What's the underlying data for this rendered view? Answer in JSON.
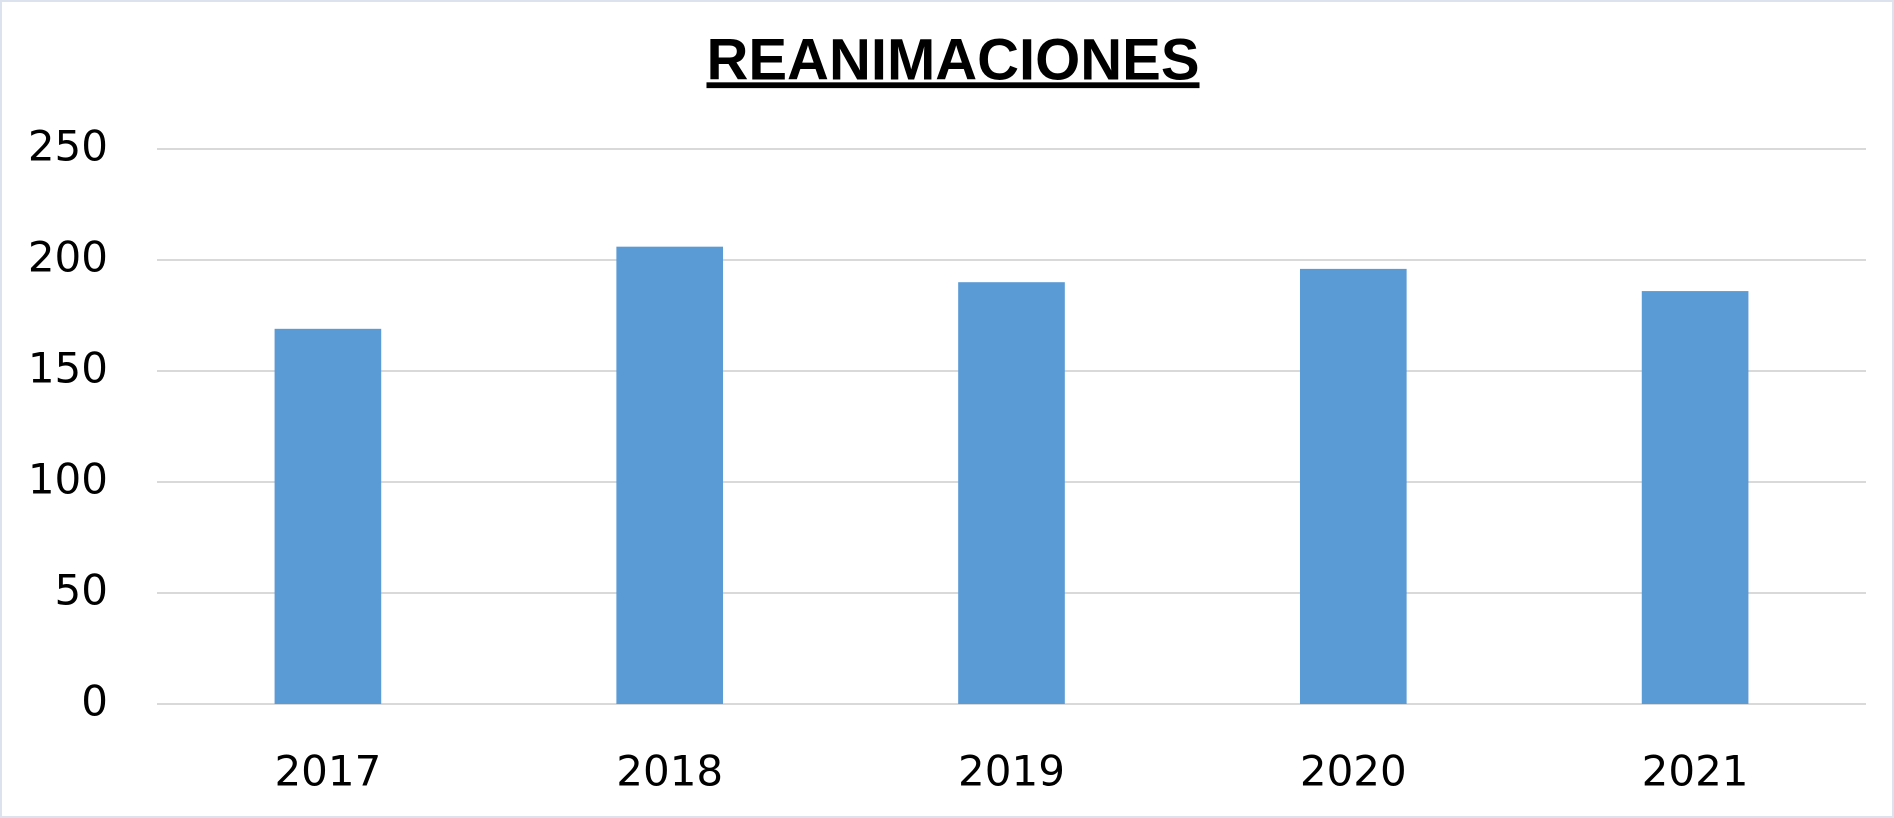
{
  "chart_data": {
    "type": "bar",
    "title": "REANIMACIONES",
    "categories": [
      "2017",
      "2018",
      "2019",
      "2020",
      "2021"
    ],
    "values": [
      169,
      206,
      190,
      196,
      186
    ],
    "color": "#5b9bd5",
    "ylim": [
      0,
      250
    ],
    "yticks": [
      0,
      50,
      100,
      150,
      200,
      250
    ],
    "grid": true
  }
}
